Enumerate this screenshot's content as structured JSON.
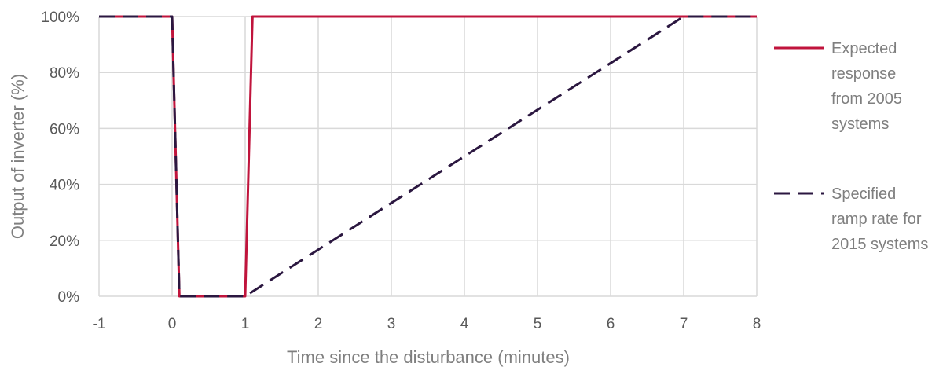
{
  "chart_data": {
    "type": "line",
    "title": "",
    "xlabel": "Time since the disturbance (minutes)",
    "ylabel": "Output of inverter (%)",
    "xlim": [
      -1,
      8
    ],
    "ylim": [
      0,
      100
    ],
    "x_ticks": [
      "-1",
      "0",
      "1",
      "2",
      "3",
      "4",
      "5",
      "6",
      "7",
      "8"
    ],
    "y_ticks": [
      "0%",
      "20%",
      "40%",
      "60%",
      "80%",
      "100%"
    ],
    "grid": true,
    "legend": "right",
    "series": [
      {
        "name": "Expected response from 2005 systems",
        "name_lines": [
          "Expected",
          "response",
          "from 2005",
          "systems"
        ],
        "color": "#c0143c",
        "style": "solid",
        "x": [
          -1,
          0,
          0.1,
          1,
          1.1,
          8
        ],
        "y": [
          100,
          100,
          0,
          0,
          100,
          100
        ]
      },
      {
        "name": "Specified ramp rate for 2015 systems",
        "name_lines": [
          "Specified",
          "ramp rate for",
          "2015 systems"
        ],
        "color": "#2b1740",
        "style": "dashed",
        "x": [
          -1,
          0,
          0.1,
          1,
          7,
          8
        ],
        "y": [
          100,
          100,
          0,
          0,
          100,
          100
        ]
      }
    ]
  }
}
